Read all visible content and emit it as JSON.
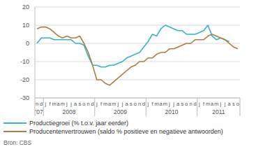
{
  "chart_data": {
    "type": "line",
    "categories": [
      "n",
      "d",
      "j",
      "f",
      "m",
      "a",
      "m",
      "j",
      "j",
      "a",
      "s",
      "o",
      "n",
      "d",
      "j",
      "f",
      "m",
      "a",
      "m",
      "j",
      "j",
      "a",
      "s",
      "o",
      "n",
      "d",
      "j",
      "f",
      "m",
      "a",
      "m",
      "j",
      "j",
      "a",
      "s",
      "o",
      "n",
      "d",
      "j",
      "f",
      "m",
      "a",
      "m",
      "j",
      "j",
      "a",
      "s",
      "o"
    ],
    "x_groups": [
      {
        "label": "'07",
        "span": 2
      },
      {
        "label": "2008",
        "span": 12
      },
      {
        "label": "2009",
        "span": 12
      },
      {
        "label": "2010",
        "span": 12
      },
      {
        "label": "2011",
        "span": 10
      }
    ],
    "series": [
      {
        "name": "Productiegroei (% t.o.v. jaar eerder)",
        "color": "#35b3cf",
        "values": [
          0,
          3,
          3,
          3,
          2,
          2,
          2,
          2,
          2,
          0,
          0,
          -1,
          -7,
          -12,
          -12,
          -13,
          -13,
          -12,
          -12,
          -11,
          -10,
          -8,
          -7,
          -6,
          -5,
          -2,
          1,
          5,
          4,
          8,
          10,
          9,
          8,
          7,
          7,
          5,
          5,
          5,
          6,
          7,
          10,
          4,
          2,
          3,
          2,
          1,
          null,
          null
        ]
      },
      {
        "name": "Producentenvertrouwen (saldo % positieve en negatieve antwoorden)",
        "color": "#b07e3c",
        "values": [
          8,
          9,
          9,
          8,
          6,
          4,
          3,
          4,
          3,
          3,
          4,
          0,
          -5,
          -12,
          -20,
          -20,
          -22,
          -23,
          -21,
          -19,
          -17,
          -15,
          -13,
          -12,
          -10,
          -10,
          -8,
          -8,
          -6,
          -5,
          -5,
          -3,
          -3,
          -2,
          -1,
          0,
          0,
          2,
          2,
          2,
          4,
          5,
          4,
          3,
          2,
          0,
          -2,
          -3
        ]
      }
    ],
    "ylim": [
      -30,
      20
    ],
    "yticks": [
      -30,
      -20,
      -10,
      0,
      10,
      20
    ],
    "grid": true,
    "legend": "bottom",
    "source": "Bron: CBS"
  }
}
